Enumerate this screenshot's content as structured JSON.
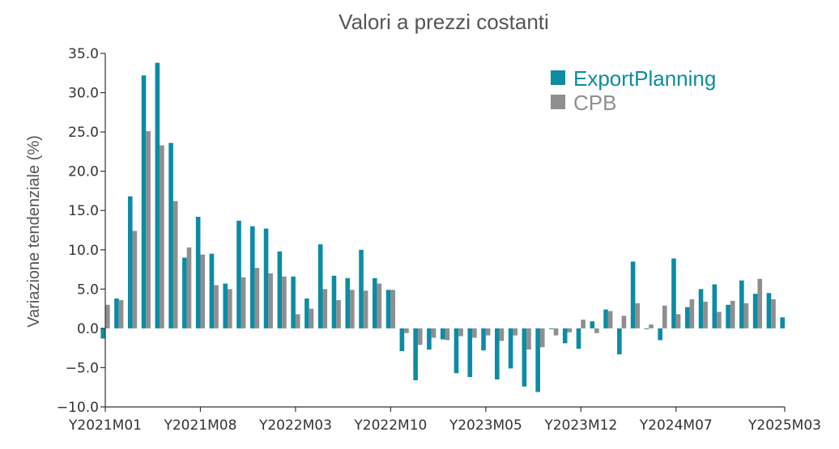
{
  "chart_data": {
    "type": "bar",
    "title": "Valori a prezzi costanti",
    "ylabel": "Variazione tendenziale (%)",
    "xlabel": "",
    "ylim": [
      -10,
      35
    ],
    "yticks": [
      35,
      30,
      25,
      20,
      15,
      10,
      5,
      0,
      -5,
      -10
    ],
    "ytick_labels": [
      "35.0",
      "30.0",
      "25.0",
      "20.0",
      "15.0",
      "10.0",
      "5.0",
      "0.0",
      "−5.0",
      "−10.0"
    ],
    "xtick_labels": [
      "Y2021M01",
      "Y2021M08",
      "Y2022M03",
      "Y2022M10",
      "Y2023M05",
      "Y2023M12",
      "Y2024M07",
      "Y2025M03"
    ],
    "xtick_index": [
      0,
      7,
      14,
      21,
      28,
      35,
      42,
      50
    ],
    "legend_position": "top-right",
    "grid": false,
    "categories": [
      "Y2021M01",
      "Y2021M02",
      "Y2021M03",
      "Y2021M04",
      "Y2021M05",
      "Y2021M06",
      "Y2021M07",
      "Y2021M08",
      "Y2021M09",
      "Y2021M10",
      "Y2021M11",
      "Y2021M12",
      "Y2022M01",
      "Y2022M02",
      "Y2022M03",
      "Y2022M04",
      "Y2022M05",
      "Y2022M06",
      "Y2022M07",
      "Y2022M08",
      "Y2022M09",
      "Y2022M10",
      "Y2022M11",
      "Y2022M12",
      "Y2023M01",
      "Y2023M02",
      "Y2023M03",
      "Y2023M04",
      "Y2023M05",
      "Y2023M06",
      "Y2023M07",
      "Y2023M08",
      "Y2023M09",
      "Y2023M10",
      "Y2023M11",
      "Y2023M12",
      "Y2024M01",
      "Y2024M02",
      "Y2024M03",
      "Y2024M04",
      "Y2024M05",
      "Y2024M06",
      "Y2024M07",
      "Y2024M08",
      "Y2024M09",
      "Y2024M10",
      "Y2024M11",
      "Y2024M12",
      "Y2025M01",
      "Y2025M02",
      "Y2025M03"
    ],
    "series": [
      {
        "name": "ExportPlanning",
        "color": "#0b8ca4",
        "values": [
          -1.3,
          3.8,
          16.8,
          32.2,
          33.8,
          23.6,
          9.0,
          14.2,
          9.5,
          5.7,
          13.7,
          13.0,
          12.7,
          9.8,
          6.6,
          3.8,
          10.7,
          6.7,
          6.4,
          10.0,
          6.4,
          4.9,
          -2.9,
          -6.6,
          -2.7,
          -1.4,
          -5.7,
          -6.2,
          -2.8,
          -6.5,
          -5.1,
          -7.4,
          -8.1,
          -0.1,
          -1.9,
          -2.6,
          0.9,
          2.4,
          -3.3,
          8.5,
          -0.1,
          -1.5,
          8.9,
          2.7,
          5.0,
          5.6,
          3.0,
          6.1,
          4.4,
          4.5,
          1.4
        ]
      },
      {
        "name": "CPB",
        "color": "#8f8f8f",
        "values": [
          3.0,
          3.6,
          12.4,
          25.1,
          23.3,
          16.2,
          10.3,
          9.4,
          5.5,
          5.0,
          6.5,
          7.7,
          7.0,
          6.6,
          1.8,
          2.5,
          5.0,
          3.6,
          4.9,
          4.8,
          5.7,
          4.9,
          -0.6,
          -2.1,
          -1.2,
          -1.5,
          -1.0,
          -1.2,
          -0.9,
          -1.6,
          -0.9,
          -2.7,
          -2.4,
          -0.9,
          -0.5,
          1.1,
          -0.6,
          2.2,
          1.6,
          3.2,
          0.5,
          2.9,
          1.8,
          3.7,
          3.4,
          2.1,
          3.5,
          3.2,
          6.3,
          3.7,
          null
        ]
      }
    ]
  }
}
